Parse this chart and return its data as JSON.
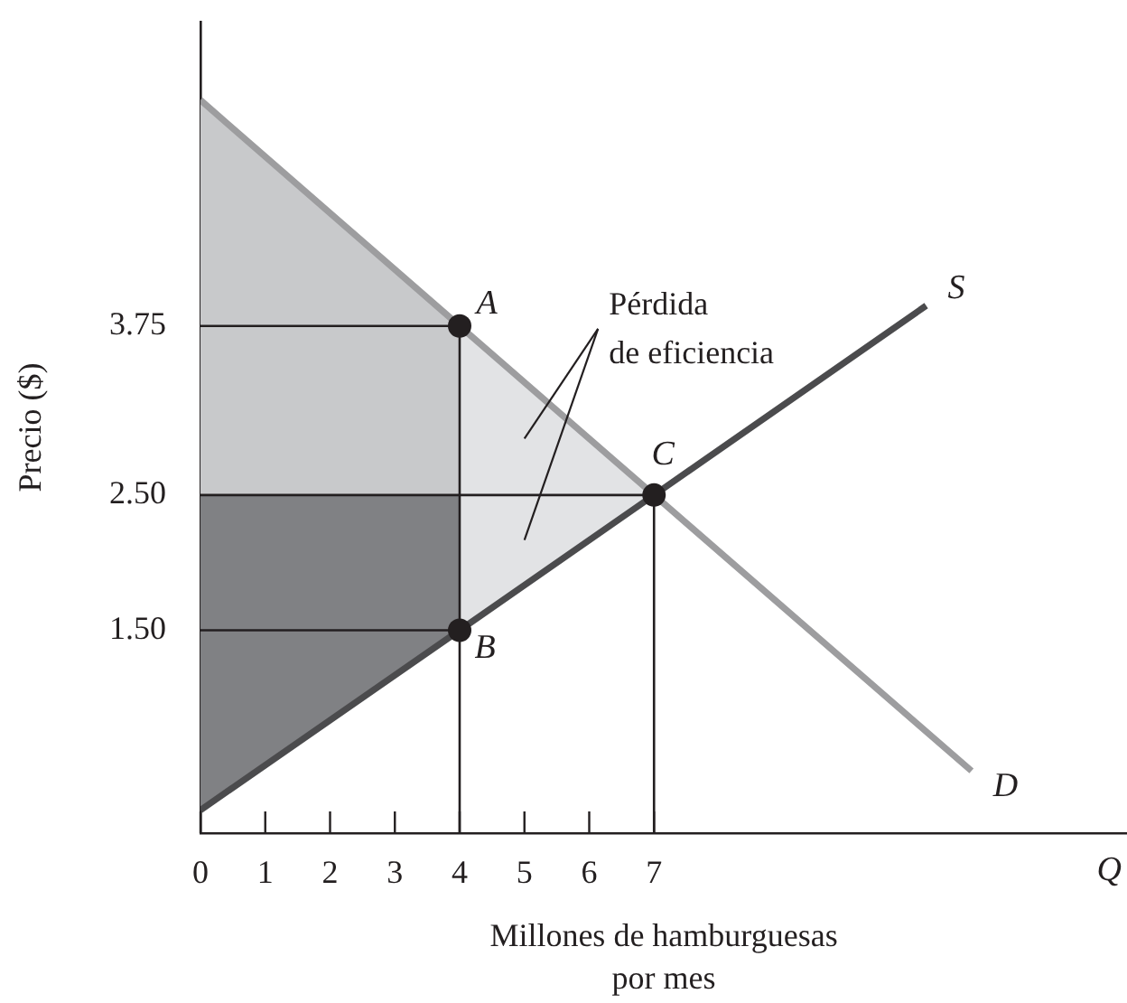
{
  "chart_data": {
    "type": "line",
    "xlabel": "Millones de hamburguesas por mes",
    "ylabel": "Precio ($)",
    "xlim": [
      0,
      14.3
    ],
    "xticks": [
      0,
      1,
      2,
      3,
      4,
      5,
      6,
      7
    ],
    "ylim": [
      0,
      6
    ],
    "yticks": [
      {
        "value": 1.5,
        "label": "1.50"
      },
      {
        "value": 2.5,
        "label": "2.50"
      },
      3.75
    ],
    "series": [
      {
        "type": "area",
        "x": [
          0,
          4,
          4,
          0
        ],
        "values": [
          5.42,
          3.75,
          2.5,
          2.5
        ],
        "color": "#c8c9cb"
      },
      {
        "type": "area",
        "x": [
          0,
          4,
          4,
          0
        ],
        "values": [
          2.5,
          2.5,
          1.5,
          0.17
        ],
        "color": "#808184"
      },
      {
        "type": "area",
        "x": [
          4,
          7,
          4
        ],
        "values": [
          3.75,
          2.5,
          1.5
        ],
        "color": "#e2e3e5"
      },
      {
        "type": "line",
        "x": [
          0,
          4,
          4
        ],
        "values": [
          3.75,
          3.75,
          0
        ],
        "color": "#231f20"
      },
      {
        "type": "line",
        "x": [
          0,
          7,
          7
        ],
        "values": [
          2.5,
          2.5,
          0
        ],
        "color": "#231f20"
      },
      {
        "type": "line",
        "x": [
          0,
          4
        ],
        "values": [
          1.5,
          1.5
        ],
        "color": "#231f20"
      },
      {
        "type": "line",
        "name": "D",
        "x": [
          0,
          4,
          7,
          11.9
        ],
        "values": [
          5.42,
          3.75,
          2.5,
          0.46
        ],
        "color": "#9d9d9f"
      },
      {
        "type": "line",
        "name": "S",
        "x": [
          0,
          4,
          7,
          11.2
        ],
        "values": [
          0.17,
          1.5,
          2.5,
          3.9
        ],
        "color": "#4b4b4d"
      },
      {
        "type": "scatter",
        "x": [
          4,
          4,
          7
        ],
        "values": [
          3.75,
          1.5,
          2.5
        ],
        "color": "#231f20",
        "marker": "circle"
      }
    ],
    "annotations": [
      "Q",
      "Pérdida de eficiencia",
      "A",
      "B",
      "C"
    ]
  }
}
